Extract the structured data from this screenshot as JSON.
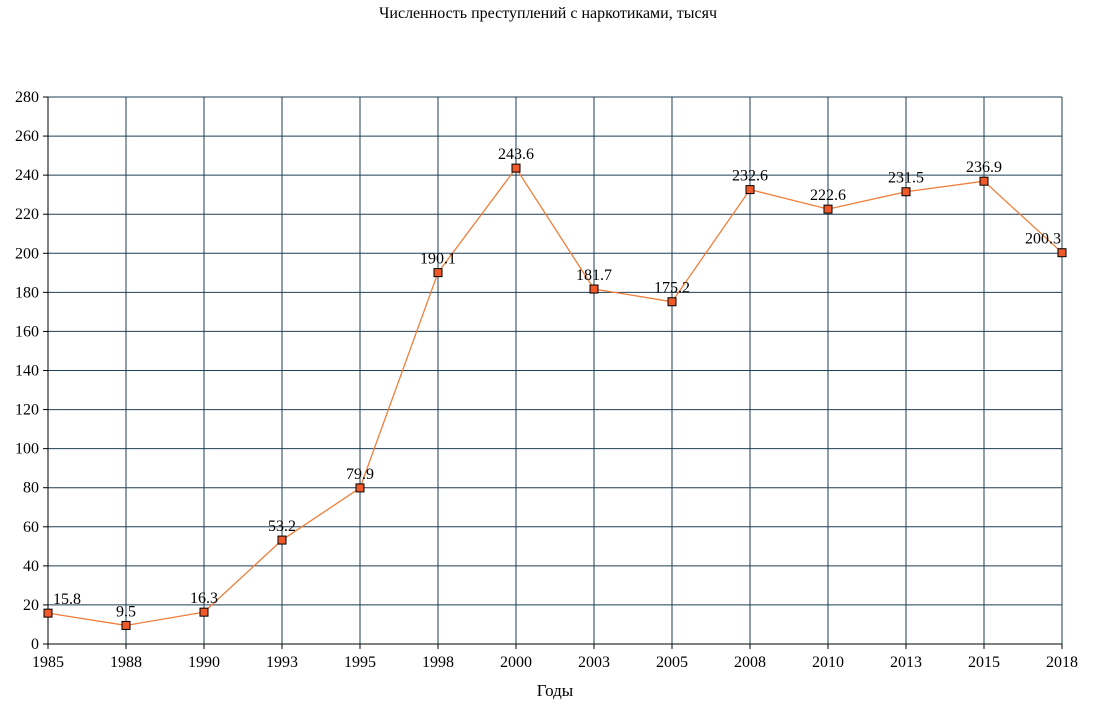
{
  "chart_data": {
    "type": "line",
    "title": "Численность преступлений с наркотиками, тысяч",
    "xlabel": "Годы",
    "ylabel": "",
    "categories": [
      "1985",
      "1988",
      "1990",
      "1993",
      "1995",
      "1998",
      "2000",
      "2003",
      "2005",
      "2008",
      "2010",
      "2013",
      "2015",
      "2018"
    ],
    "series": [
      {
        "values": [
          15.8,
          9.5,
          16.3,
          53.2,
          79.9,
          190.1,
          243.6,
          181.7,
          175.2,
          232.6,
          222.6,
          231.5,
          236.9,
          200.3
        ]
      }
    ],
    "ylim": [
      0,
      280
    ],
    "yticks": [
      0,
      20,
      40,
      60,
      80,
      100,
      120,
      140,
      160,
      180,
      200,
      220,
      240,
      260,
      280
    ],
    "grid": true,
    "legend": "none",
    "colors": {
      "line": "#f07f3c",
      "marker_fill": "#f05a2a",
      "marker_edge": "#000000",
      "grid": "#1f3f55",
      "axis": "#000000"
    }
  }
}
